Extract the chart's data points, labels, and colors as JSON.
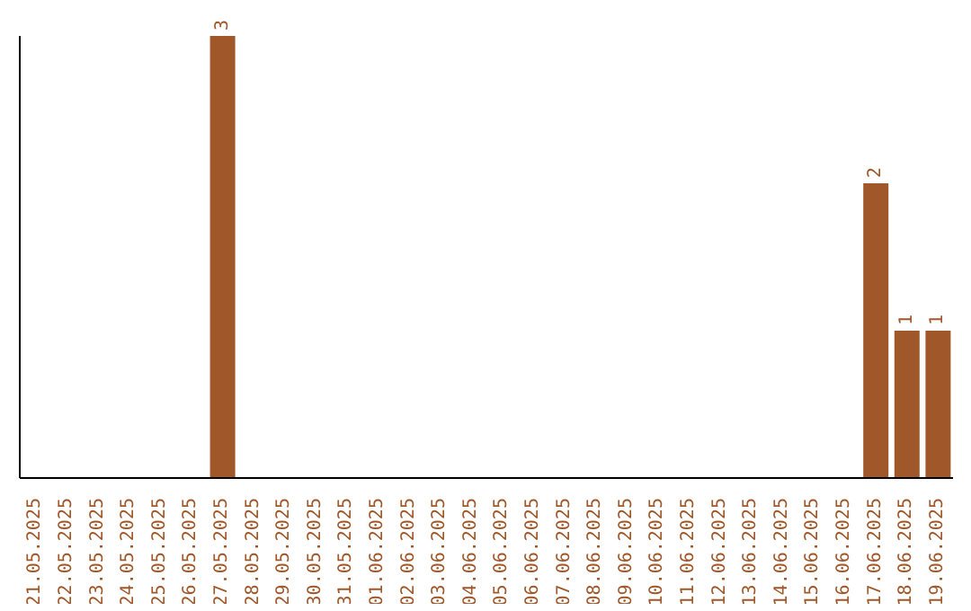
{
  "chart_data": {
    "type": "bar",
    "categories": [
      "21.05.2025",
      "22.05.2025",
      "23.05.2025",
      "24.05.2025",
      "25.05.2025",
      "26.05.2025",
      "27.05.2025",
      "28.05.2025",
      "29.05.2025",
      "30.05.2025",
      "31.05.2025",
      "01.06.2025",
      "02.06.2025",
      "03.06.2025",
      "04.06.2025",
      "05.06.2025",
      "06.06.2025",
      "07.06.2025",
      "08.06.2025",
      "09.06.2025",
      "10.06.2025",
      "11.06.2025",
      "12.06.2025",
      "13.06.2025",
      "14.06.2025",
      "15.06.2025",
      "16.06.2025",
      "17.06.2025",
      "18.06.2025",
      "19.06.2025"
    ],
    "values": [
      0,
      0,
      0,
      0,
      0,
      0,
      3,
      0,
      0,
      0,
      0,
      0,
      0,
      0,
      0,
      0,
      0,
      0,
      0,
      0,
      0,
      0,
      0,
      0,
      0,
      0,
      0,
      2,
      1,
      1
    ],
    "value_labels": [
      null,
      null,
      null,
      null,
      null,
      null,
      "3",
      null,
      null,
      null,
      null,
      null,
      null,
      null,
      null,
      null,
      null,
      null,
      null,
      null,
      null,
      null,
      null,
      null,
      null,
      null,
      null,
      "2",
      "1",
      "1"
    ],
    "color": "#a0582a",
    "tick_labels": "x"
  }
}
